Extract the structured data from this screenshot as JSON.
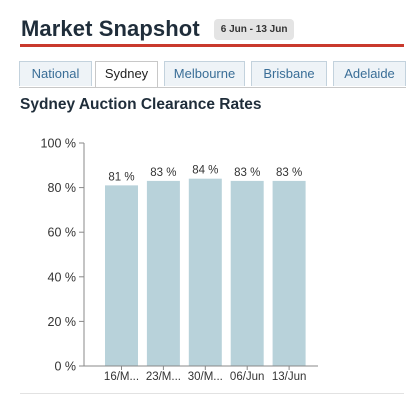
{
  "header": {
    "title": "Market Snapshot",
    "date_range": "6 Jun - 13 Jun"
  },
  "tabs": [
    {
      "label": "National",
      "active": false
    },
    {
      "label": "Sydney",
      "active": true
    },
    {
      "label": "Melbourne",
      "active": false
    },
    {
      "label": "Brisbane",
      "active": false
    },
    {
      "label": "Adelaide",
      "active": false
    }
  ],
  "colors": {
    "accent": "#c9392d",
    "bar": "#b8d2da",
    "tab_text": "#3a6e97"
  },
  "chart_data": {
    "type": "bar",
    "title": "Sydney Auction Clearance Rates",
    "categories": [
      "16/M...",
      "23/M...",
      "30/M...",
      "06/Jun",
      "13/Jun"
    ],
    "values": [
      81,
      83,
      84,
      83,
      83
    ],
    "value_labels": [
      "81 %",
      "83 %",
      "84 %",
      "83 %",
      "83 %"
    ],
    "ylim": [
      0,
      100
    ],
    "yticks": [
      0,
      20,
      40,
      60,
      80,
      100
    ],
    "ytick_labels": [
      "0 %",
      "20 %",
      "40 %",
      "60 %",
      "80 %",
      "100 %"
    ],
    "xlabel": "",
    "ylabel": "",
    "grid": false,
    "legend": "none"
  }
}
